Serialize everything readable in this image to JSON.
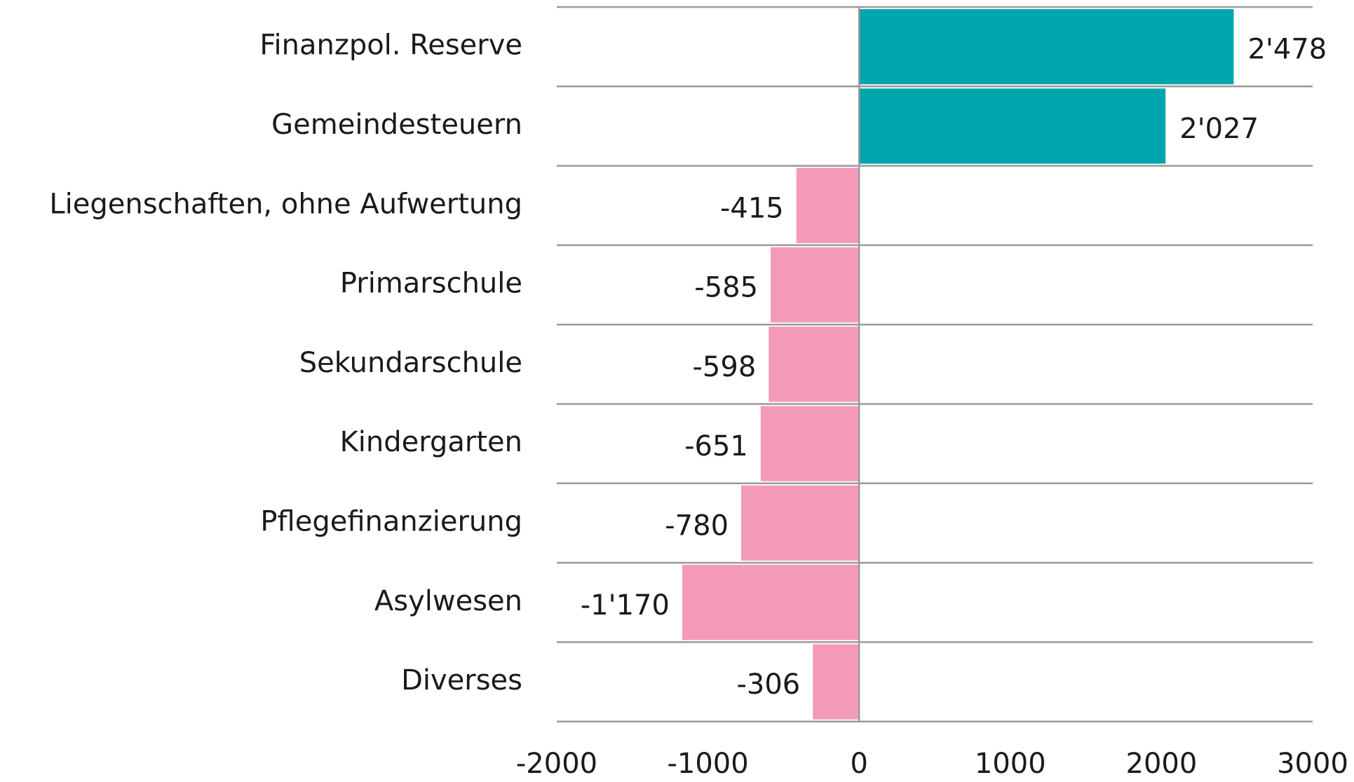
{
  "chart_data": {
    "type": "hbar",
    "categories": [
      "Finanzpol. Reserve",
      "Gemeindesteuern",
      "Liegenschaften, ohne Aufwertung",
      "Primarschule",
      "Sekundarschule",
      "Kindergarten",
      "Pflegefinanzierung",
      "Asylwesen",
      "Diverses"
    ],
    "values": [
      2478,
      2027,
      -415,
      -585,
      -598,
      -651,
      -780,
      -1170,
      -306
    ],
    "value_labels": [
      "2'478",
      "2'027",
      "-415",
      "-585",
      "-598",
      "-651",
      "-780",
      "-1'170",
      "-306"
    ],
    "positive_color": "#00a6ad",
    "negative_color": "#f49ab9",
    "xlim": [
      -2000,
      3000
    ],
    "xticks": [
      -2000,
      -1000,
      0,
      1000,
      2000,
      3000
    ]
  }
}
